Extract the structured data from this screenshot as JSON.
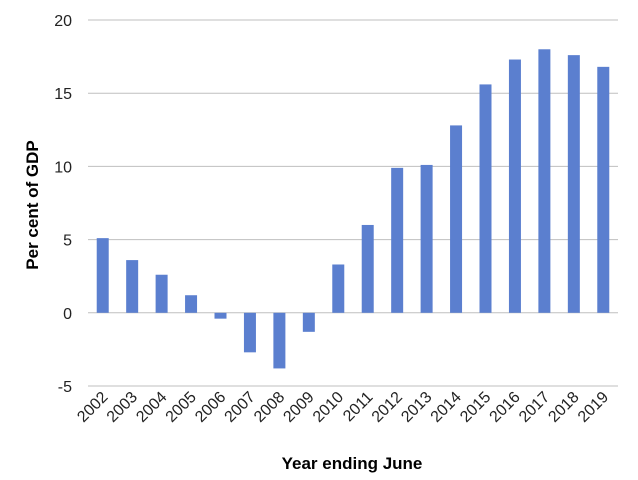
{
  "chart_data": {
    "type": "bar",
    "title": "",
    "xlabel": "Year ending June",
    "ylabel": "Per cent of GDP",
    "ylim": [
      -5,
      20
    ],
    "yticks": [
      -5,
      0,
      5,
      10,
      15,
      20
    ],
    "grid": true,
    "legend": "none",
    "bar_color": "#5b7fcf",
    "categories": [
      "2002",
      "2003",
      "2004",
      "2005",
      "2006",
      "2007",
      "2008",
      "2009",
      "2010",
      "2011",
      "2012",
      "2013",
      "2014",
      "2015",
      "2016",
      "2017",
      "2018",
      "2019"
    ],
    "values": [
      5.1,
      3.6,
      2.6,
      1.2,
      -0.4,
      -2.7,
      -3.8,
      -1.3,
      3.3,
      6.0,
      9.9,
      10.1,
      12.8,
      15.6,
      17.3,
      18.0,
      17.6,
      16.8
    ]
  }
}
